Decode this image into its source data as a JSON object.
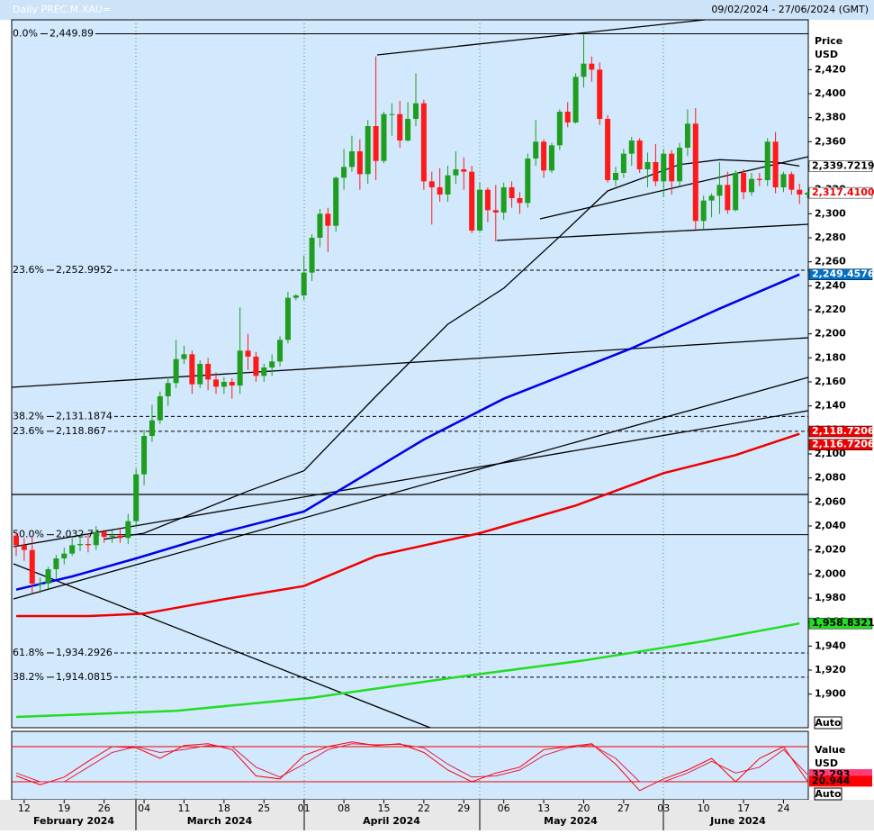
{
  "chart_data": {
    "type": "candlestick",
    "title": "Daily PREC.M.XAU=",
    "subtitle": "09/02/2024 - 27/06/2024 (GMT)",
    "y_axis_label": "Price",
    "y_axis_unit": "USD",
    "auto_button": "Auto",
    "up_color": "#1e9e1e",
    "down_color": "#ff1a1a",
    "categories": [
      null,
      "12",
      null,
      null,
      null,
      null,
      "19",
      null,
      null,
      null,
      null,
      "26",
      null,
      null,
      null,
      null,
      "04",
      null,
      null,
      null,
      null,
      "11",
      null,
      null,
      null,
      null,
      "18",
      null,
      null,
      null,
      null,
      "25",
      null,
      null,
      null,
      null,
      "01",
      null,
      null,
      null,
      null,
      "08",
      null,
      null,
      null,
      null,
      "15",
      null,
      null,
      null,
      null,
      "22",
      null,
      null,
      null,
      null,
      "29",
      null,
      null,
      null,
      null,
      "06",
      null,
      null,
      null,
      null,
      "13",
      null,
      null,
      null,
      null,
      "20",
      null,
      null,
      null,
      null,
      "27",
      null,
      null,
      null,
      null,
      "03",
      null,
      null,
      null,
      null,
      "10",
      null,
      null,
      null,
      null,
      "17",
      null,
      null,
      null,
      null,
      "24",
      null,
      null,
      null
    ],
    "months": [
      "February 2024",
      "March 2024",
      "April 2024",
      "May 2024",
      "June 2024"
    ],
    "open": [
      2032,
      2024,
      2020,
      1992,
      1992,
      2004,
      2013,
      2017,
      2024,
      2025,
      2024,
      2035,
      2031,
      2032,
      2030,
      2044,
      2083,
      2115,
      2128,
      2148,
      2159,
      2179,
      2183,
      2158,
      2175,
      2162,
      2156,
      2160,
      2157,
      2186,
      2181,
      2165,
      2172,
      2177,
      2195,
      2230,
      2232,
      2251,
      2280,
      2300,
      2290,
      2330,
      2339,
      2352,
      2333,
      2373,
      2344,
      2383,
      2383,
      2361,
      2379,
      2392,
      2327,
      2322,
      2316,
      2332,
      2337,
      2335,
      2286,
      2320,
      2303,
      2301,
      2322,
      2313,
      2309,
      2346,
      2360,
      2336,
      2357,
      2385,
      2376,
      2414,
      2425,
      2420,
      2379,
      2328,
      2334,
      2350,
      2361,
      2337,
      2343,
      2327,
      2350,
      2327,
      2355,
      2375,
      2294,
      2311,
      2315,
      2324,
      2303,
      2334,
      2318,
      2329,
      2328,
      2360,
      2322,
      2333,
      2320,
      2316
    ],
    "high": [
      2035,
      2030,
      2032,
      1997,
      2006,
      2016,
      2022,
      2030,
      2032,
      2034,
      2040,
      2037,
      2036,
      2038,
      2050,
      2088,
      2120,
      2141,
      2152,
      2164,
      2195,
      2190,
      2186,
      2178,
      2180,
      2168,
      2164,
      2163,
      2222,
      2200,
      2185,
      2175,
      2183,
      2198,
      2235,
      2233,
      2265,
      2283,
      2304,
      2305,
      2331,
      2354,
      2365,
      2362,
      2378,
      2431,
      2385,
      2392,
      2394,
      2393,
      2417,
      2395,
      2335,
      2338,
      2340,
      2352,
      2347,
      2340,
      2326,
      2322,
      2324,
      2326,
      2327,
      2318,
      2350,
      2378,
      2362,
      2359,
      2387,
      2393,
      2417,
      2450,
      2431,
      2426,
      2382,
      2339,
      2354,
      2364,
      2363,
      2351,
      2358,
      2354,
      2353,
      2359,
      2387,
      2388,
      2315,
      2317,
      2343,
      2335,
      2336,
      2337,
      2334,
      2334,
      2363,
      2368,
      2335,
      2335,
      2325,
      2318
    ],
    "low": [
      2015,
      2011,
      1984,
      1984,
      1988,
      1996,
      2008,
      2015,
      2019,
      2018,
      2020,
      2026,
      2026,
      2026,
      2025,
      2039,
      2074,
      2110,
      2125,
      2140,
      2155,
      2175,
      2150,
      2155,
      2153,
      2150,
      2150,
      2146,
      2150,
      2170,
      2160,
      2160,
      2165,
      2173,
      2192,
      2228,
      2228,
      2244,
      2272,
      2268,
      2285,
      2320,
      2335,
      2320,
      2325,
      2328,
      2342,
      2365,
      2355,
      2360,
      2373,
      2320,
      2291,
      2310,
      2310,
      2325,
      2320,
      2284,
      2285,
      2293,
      2277,
      2295,
      2305,
      2300,
      2305,
      2340,
      2330,
      2334,
      2353,
      2372,
      2375,
      2405,
      2410,
      2374,
      2326,
      2323,
      2330,
      2340,
      2334,
      2322,
      2323,
      2314,
      2316,
      2323,
      2348,
      2287,
      2287,
      2297,
      2300,
      2300,
      2302,
      2312,
      2315,
      2323,
      2323,
      2317,
      2318,
      2316,
      2308,
      2313
    ],
    "close": [
      2024,
      2020,
      1992,
      1992,
      2004,
      2013,
      2017,
      2024,
      2025,
      2024,
      2035,
      2031,
      2032,
      2030,
      2044,
      2083,
      2115,
      2128,
      2148,
      2159,
      2179,
      2183,
      2158,
      2175,
      2162,
      2156,
      2160,
      2157,
      2186,
      2181,
      2165,
      2172,
      2177,
      2195,
      2230,
      2232,
      2251,
      2280,
      2300,
      2290,
      2330,
      2339,
      2352,
      2333,
      2373,
      2344,
      2383,
      2383,
      2361,
      2379,
      2392,
      2327,
      2322,
      2316,
      2332,
      2337,
      2335,
      2286,
      2320,
      2303,
      2301,
      2322,
      2313,
      2309,
      2346,
      2360,
      2336,
      2357,
      2385,
      2376,
      2414,
      2425,
      2420,
      2379,
      2328,
      2334,
      2350,
      2361,
      2337,
      2343,
      2327,
      2350,
      2327,
      2355,
      2375,
      2294,
      2311,
      2315,
      2324,
      2303,
      2334,
      2318,
      2329,
      2328,
      2360,
      2322,
      2333,
      2320,
      2316,
      2317.41
    ],
    "overlays": [
      {
        "color": "#0000e6",
        "x": [
          0,
          7,
          15,
          26,
          36,
          51,
          61,
          77,
          88,
          98
        ],
        "values": [
          1987,
          1998,
          2013,
          2035,
          2052,
          2112,
          2146,
          2188,
          2221,
          2249.4576
        ]
      },
      {
        "color": "#ee0000",
        "x": [
          0,
          9,
          16,
          26,
          36,
          45,
          58,
          70,
          81,
          90,
          98
        ],
        "values": [
          1965,
          1965,
          1967,
          1979,
          1990,
          2015,
          2034,
          2057,
          2084,
          2099,
          2116.7206
        ]
      },
      {
        "color": "#22dd22",
        "x": [
          0,
          20,
          37,
          56,
          71,
          86,
          98
        ],
        "values": [
          1881,
          1886,
          1897,
          1915,
          1928,
          1944,
          1958.8321
        ]
      },
      {
        "color": "#000000",
        "x": [
          11,
          16,
          29,
          36,
          45,
          54,
          61,
          68,
          74,
          83,
          88,
          95,
          98
        ],
        "values": [
          2029,
          2034,
          2069,
          2086,
          2148,
          2208,
          2238,
          2281,
          2319,
          2341,
          2345,
          2343,
          2339.7219
        ]
      }
    ],
    "fib_levels": [
      {
        "label": "0.0%",
        "value": 2449.89,
        "value_label": "2,449.89",
        "dashed": false
      },
      {
        "label": "23.6%",
        "value": 2252.9952,
        "value_label": "2,252.9952",
        "dashed": true
      },
      {
        "label": "38.2%",
        "value": 2131.1874,
        "value_label": "2,131.1874",
        "dashed": true
      },
      {
        "label": "23.6%",
        "value": 2118.867,
        "value_label": "2,118.867",
        "dashed": true
      },
      {
        "label": "50.0%",
        "value": 2032.74,
        "value_label": "2,032.74",
        "dashed": false
      },
      {
        "label": "61.8%",
        "value": 1934.2926,
        "value_label": "1,934.2926",
        "dashed": true
      },
      {
        "label": "38.2%",
        "value": 1914.0815,
        "value_label": "1,914.0815",
        "dashed": true
      }
    ],
    "price_badges": [
      {
        "value": 2339.7219,
        "label": "2,339.7219",
        "color": "#ffffff",
        "text_color": "#000000"
      },
      {
        "value": 2317.41,
        "label": "2,317.4100",
        "color": "#ffffff",
        "text_color": "#ee0000"
      },
      {
        "value": 2249.4576,
        "label": "2,249.4576",
        "color": "#0070c8",
        "text_color": "#ffffff"
      },
      {
        "value": 2118.7206,
        "label": "2,118.7206",
        "color": "#ee0000",
        "text_color": "#ffffff"
      },
      {
        "value": 2116.7206,
        "label": "2,116.7206",
        "color": "#ee0000",
        "text_color": "#ffffff"
      },
      {
        "value": 1958.8321,
        "label": "1,958.8321",
        "color": "#22dd22",
        "text_color": "#000000"
      }
    ],
    "ylim": [
      1872,
      2461.5
    ],
    "yticks": [
      {
        "value": 1900,
        "label": "1,900"
      },
      {
        "value": 1920,
        "label": "1,920"
      },
      {
        "value": 1940,
        "label": "1,940"
      },
      {
        "value": 1960,
        "label": "1,960"
      },
      {
        "value": 1980,
        "label": "1,980"
      },
      {
        "value": 2000,
        "label": "2,000"
      },
      {
        "value": 2020,
        "label": "2,020"
      },
      {
        "value": 2040,
        "label": "2,040"
      },
      {
        "value": 2060,
        "label": "2,060"
      },
      {
        "value": 2080,
        "label": "2,080"
      },
      {
        "value": 2100,
        "label": "2,100"
      },
      {
        "value": 2120,
        "label": "2,120"
      },
      {
        "value": 2140,
        "label": "2,140"
      },
      {
        "value": 2160,
        "label": "2,160"
      },
      {
        "value": 2180,
        "label": "2,180"
      },
      {
        "value": 2200,
        "label": "2,200"
      },
      {
        "value": 2220,
        "label": "2,220"
      },
      {
        "value": 2240,
        "label": "2,240"
      },
      {
        "value": 2260,
        "label": "2,260"
      },
      {
        "value": 2280,
        "label": "2,280"
      },
      {
        "value": 2300,
        "label": "2,300"
      },
      {
        "value": 2320,
        "label": "2,320"
      },
      {
        "value": 2340,
        "label": "2,340"
      },
      {
        "value": 2360,
        "label": "2,360"
      },
      {
        "value": 2380,
        "label": "2,380"
      },
      {
        "value": 2400,
        "label": "2,400"
      },
      {
        "value": 2420,
        "label": "2,420"
      }
    ],
    "oscillator": {
      "y_axis_label": "Value",
      "y_axis_unit": "USD",
      "ylim": [
        0,
        100
      ],
      "levels": [
        80,
        20
      ],
      "x": [
        0,
        3,
        6,
        9,
        12,
        15,
        18,
        21,
        24,
        27,
        30,
        33,
        36,
        39,
        42,
        45,
        48,
        51,
        54,
        57,
        60,
        63,
        66,
        69,
        72,
        75,
        78,
        81,
        84,
        87,
        90,
        93,
        96,
        99
      ],
      "series": [
        {
          "color": "#e0204a",
          "values": [
            35,
            20,
            20,
            45,
            70,
            80,
            70,
            75,
            82,
            80,
            45,
            28,
            50,
            75,
            85,
            83,
            84,
            78,
            50,
            28,
            30,
            40,
            65,
            78,
            83,
            60,
            20,
            20,
            35,
            55,
            35,
            45,
            75,
            32.293
          ],
          "badge_color": "#ff3c78"
        },
        {
          "color": "#ff0000",
          "values": [
            30,
            15,
            28,
            55,
            80,
            78,
            60,
            82,
            85,
            75,
            30,
            25,
            65,
            80,
            88,
            82,
            85,
            70,
            40,
            20,
            35,
            45,
            75,
            80,
            85,
            50,
            5,
            25,
            40,
            60,
            20,
            60,
            80,
            20.944
          ],
          "badge_color": "#ff0000"
        }
      ]
    }
  }
}
